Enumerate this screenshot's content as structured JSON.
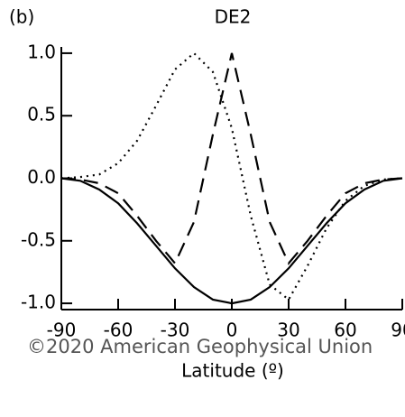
{
  "chart_data": {
    "type": "line",
    "title": "DE2",
    "panel_label": "(b)",
    "x_label": "Latitude (º)",
    "watermark": "©2020 American Geophysical Union",
    "x": [
      -90,
      -80,
      -70,
      -60,
      -50,
      -40,
      -30,
      -20,
      -10,
      0,
      10,
      20,
      30,
      40,
      50,
      60,
      70,
      80,
      90
    ],
    "series": [
      {
        "name": "solid",
        "color": "#000000",
        "dash": "none",
        "values": [
          0,
          -0.02,
          -0.09,
          -0.2,
          -0.36,
          -0.54,
          -0.72,
          -0.87,
          -0.97,
          -1,
          -0.97,
          -0.87,
          -0.72,
          -0.54,
          -0.36,
          -0.2,
          -0.09,
          -0.02,
          0
        ]
      },
      {
        "name": "dashed",
        "color": "#000000",
        "dash": "16 9",
        "values": [
          0,
          -0.01,
          -0.04,
          -0.12,
          -0.3,
          -0.5,
          -0.68,
          -0.35,
          0.35,
          1,
          0.35,
          -0.35,
          -0.68,
          -0.5,
          -0.3,
          -0.12,
          -0.04,
          -0.01,
          0
        ]
      },
      {
        "name": "dotted",
        "color": "#000000",
        "dash": "2 5",
        "values": [
          0,
          0.01,
          0.03,
          0.12,
          0.3,
          0.58,
          0.87,
          1,
          0.85,
          0.4,
          -0.3,
          -0.85,
          -0.97,
          -0.7,
          -0.4,
          -0.18,
          -0.06,
          -0.01,
          0
        ]
      }
    ],
    "xlim": [
      -90,
      90
    ],
    "xticks": [
      -90,
      -60,
      -30,
      0,
      30,
      60,
      90
    ],
    "ylim": [
      -1.05,
      1.05
    ],
    "yticks": [
      {
        "value": -1,
        "label": "-1.0"
      },
      {
        "value": -0.5,
        "label": "-0.5"
      },
      {
        "value": 0,
        "label": "0.0"
      },
      {
        "value": 0.5,
        "label": "0.5"
      },
      {
        "value": 1,
        "label": "1.0"
      }
    ]
  }
}
